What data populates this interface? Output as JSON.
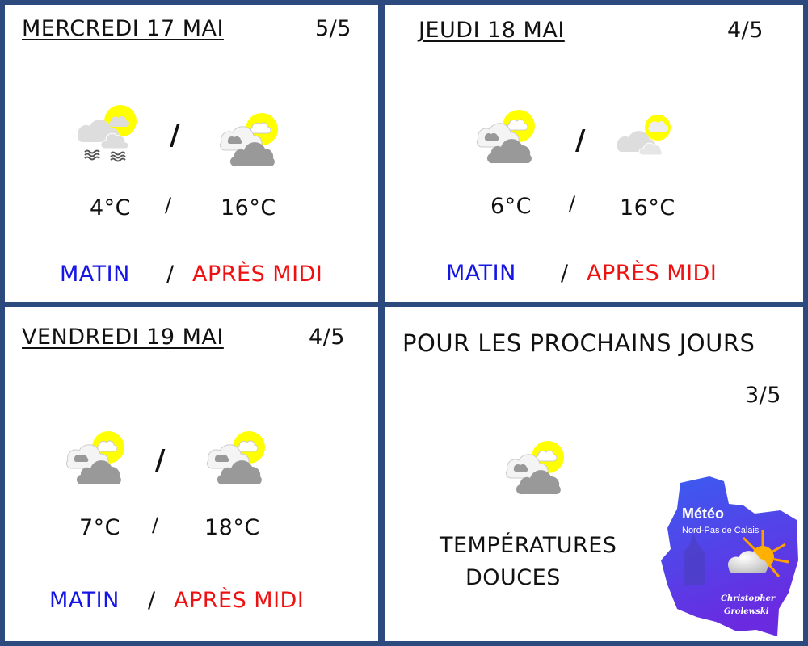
{
  "days": [
    {
      "title": "MERCREDI 17 MAI",
      "rating": "5/5",
      "morning_icon": "fog-cloud-sun-icon",
      "afternoon_icon": "cloudy-sun-icon",
      "temp_min": "4°C",
      "temp_max": "16°C",
      "sep": "/",
      "morning_label": "MATIN",
      "afternoon_label": "APRÈS MIDI"
    },
    {
      "title": "JEUDI 18 MAI",
      "rating": "4/5",
      "morning_icon": "cloudy-sun-icon",
      "afternoon_icon": "partly-cloudy-icon",
      "temp_min": "6°C",
      "temp_max": "16°C",
      "sep": "/",
      "morning_label": "MATIN",
      "afternoon_label": "APRÈS MIDI"
    },
    {
      "title": "VENDREDI 19 MAI",
      "rating": "4/5",
      "morning_icon": "cloudy-sun-icon",
      "afternoon_icon": "cloudy-sun-icon",
      "temp_min": "7°C",
      "temp_max": "18°C",
      "sep": "/",
      "morning_label": "MATIN",
      "afternoon_label": "APRÈS MIDI"
    }
  ],
  "outlook": {
    "title": "POUR LES PROCHAINS JOURS",
    "rating": "3/5",
    "icon": "cloudy-sun-icon",
    "line1": "TEMPÉRATURES",
    "line2": "DOUCES"
  },
  "logo": {
    "title": "Météo",
    "subtitle": "Nord-Pas de Calais",
    "author1": "Christopher",
    "author2": "Grolewski"
  },
  "colors": {
    "border": "#2d4a7e",
    "morning": "#1515e6",
    "afternoon": "#ee1111",
    "sun": "#ffff00"
  }
}
